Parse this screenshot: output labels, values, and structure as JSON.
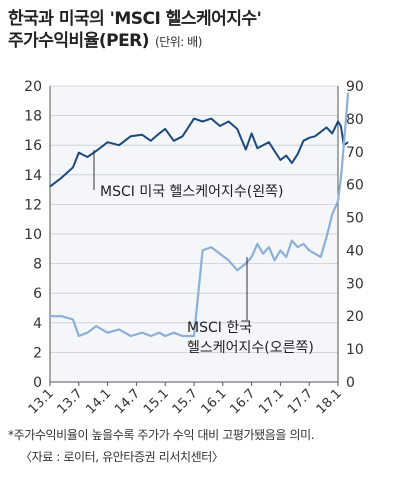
{
  "header": {
    "title_line1": "한국과 미국의 'MSCI 헬스케어지수'",
    "title_line2": "주가수익비율(PER)",
    "unit": "(단위: 배)"
  },
  "chart_data": {
    "type": "line",
    "x_ticks": [
      "13.1",
      "13.7",
      "14.1",
      "14.7",
      "15.1",
      "15.7",
      "16.1",
      "16.7",
      "17.1",
      "17.7",
      "18.1"
    ],
    "left_axis": {
      "ticks": [
        0,
        2,
        4,
        6,
        8,
        10,
        12,
        14,
        16,
        18,
        20
      ],
      "ylim": [
        0,
        20
      ]
    },
    "right_axis": {
      "ticks": [
        0,
        10,
        20,
        30,
        40,
        50,
        60,
        70,
        80,
        90
      ],
      "ylim": [
        0,
        90
      ]
    },
    "series": [
      {
        "name": "MSCI 미국 헬스케어지수(왼쪽)",
        "axis": "left",
        "color": "#1d4a7c",
        "x": [
          0,
          0.4,
          0.8,
          1.0,
          1.3,
          1.6,
          2.0,
          2.4,
          2.8,
          3.2,
          3.5,
          3.8,
          4.0,
          4.3,
          4.6,
          5.0,
          5.3,
          5.6,
          5.9,
          6.2,
          6.5,
          6.8,
          7.0,
          7.2,
          7.4,
          7.6,
          7.8,
          8.0,
          8.2,
          8.4,
          8.6,
          8.8,
          9.0,
          9.2,
          9.4,
          9.6,
          9.8,
          10.0,
          10.1,
          10.2,
          10.35
        ],
        "values": [
          13.2,
          13.8,
          14.5,
          15.5,
          15.2,
          15.6,
          16.2,
          16.0,
          16.6,
          16.7,
          16.3,
          16.8,
          17.1,
          16.3,
          16.6,
          17.8,
          17.6,
          17.8,
          17.3,
          17.6,
          17.1,
          15.7,
          16.8,
          15.8,
          16.0,
          16.2,
          15.6,
          15.0,
          15.3,
          14.8,
          15.4,
          16.3,
          16.5,
          16.6,
          16.9,
          17.2,
          16.8,
          17.6,
          17.3,
          16.0,
          16.2
        ]
      },
      {
        "name": "MSCI 한국 헬스케어지수(오른쪽)",
        "axis": "right",
        "color": "#8cb0d6",
        "x": [
          0,
          0.4,
          0.8,
          1.0,
          1.3,
          1.6,
          2.0,
          2.4,
          2.8,
          3.2,
          3.5,
          3.8,
          4.0,
          4.3,
          4.6,
          4.9,
          5.0,
          5.3,
          5.6,
          5.9,
          6.2,
          6.5,
          6.8,
          7.0,
          7.2,
          7.4,
          7.6,
          7.8,
          8.0,
          8.2,
          8.4,
          8.6,
          8.8,
          9.0,
          9.2,
          9.4,
          9.6,
          9.8,
          10.0,
          10.1,
          10.2,
          10.35
        ],
        "values": [
          20,
          20,
          19,
          14,
          15,
          17,
          15,
          16,
          14,
          15,
          14,
          15,
          14,
          15,
          14,
          14,
          14,
          40,
          41,
          39,
          37,
          34,
          36,
          38,
          42,
          39,
          41,
          37,
          40,
          38,
          43,
          41,
          42,
          40,
          39,
          38,
          44,
          51,
          55,
          62,
          72,
          88
        ]
      }
    ],
    "annotations": [
      "MSCI 미국 헬스케어지수(왼쪽)",
      "MSCI 한국",
      "헬스케어지수(오른쪽)"
    ]
  },
  "footer": {
    "note": "*주가수익비율이 높을수록 주가가 수익 대비 고평가됐음을 의미.",
    "source": "〈자료 : 로이터, 유안타증권 리서치센터〉"
  }
}
